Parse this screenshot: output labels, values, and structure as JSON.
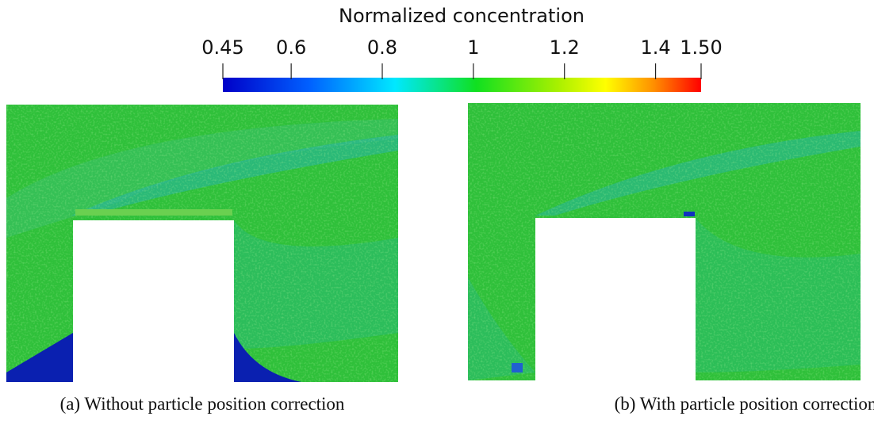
{
  "colorbar": {
    "title": "Normalized concentration",
    "range": [
      0.45,
      1.5
    ],
    "ticks": [
      0.45,
      0.6,
      0.8,
      1,
      1.2,
      1.4,
      {
        "value": 1.5,
        "label": "1.50"
      }
    ]
  },
  "panels": [
    {
      "caption": "(a) Without particle position correction"
    },
    {
      "caption": "(b) With particle position correction"
    }
  ]
}
